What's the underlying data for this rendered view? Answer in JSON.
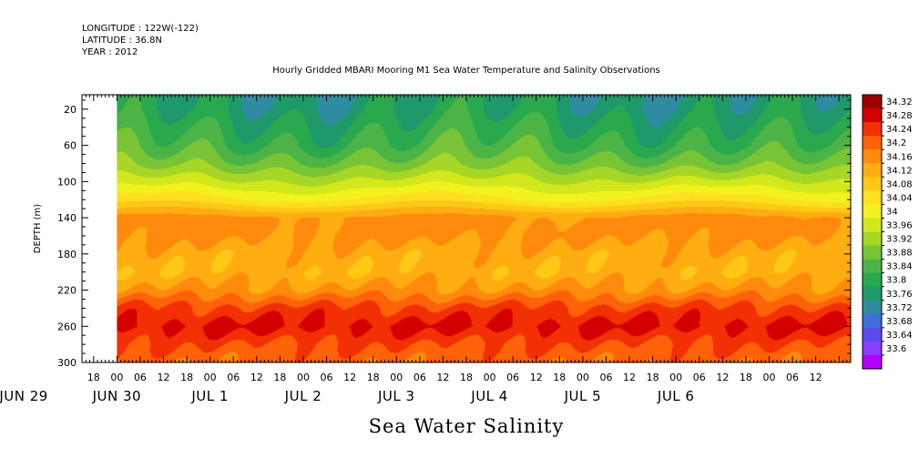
{
  "header": {
    "longitude": "LONGITUDE : 122W(-122)",
    "latitude": "LATITUDE : 36.8N",
    "year": "YEAR : 2012"
  },
  "chart_data": {
    "type": "heatmap",
    "title": "Hourly Gridded MBARI Mooring M1 Sea Water Temperature and Salinity Observations",
    "xlabel": "Sea Water Salinity",
    "ylabel": "DEPTH (m)",
    "y_axis": {
      "reversed": true,
      "ylim": [
        300,
        4
      ],
      "ticks": [
        20,
        60,
        100,
        140,
        180,
        220,
        260,
        300
      ]
    },
    "x_axis": {
      "start": "2012-06-28T15:00",
      "end": "2012-07-06T21:00",
      "data_start": "2012-06-29T00:00",
      "hour_ticks": [
        "18",
        "00",
        "06",
        "12",
        "18",
        "00",
        "06",
        "12",
        "18",
        "00",
        "06",
        "12",
        "18",
        "00",
        "06",
        "12",
        "18",
        "00",
        "06",
        "12",
        "18",
        "00",
        "06",
        "12",
        "18",
        "00",
        "06",
        "12",
        "18",
        "00",
        "06",
        "12"
      ],
      "date_labels": [
        "JUN 29",
        "JUN 30",
        "JUL  1",
        "JUL  2",
        "JUL  3",
        "JUL  4",
        "JUL  5",
        "JUL  6"
      ]
    },
    "colorbar": {
      "levels": [
        33.6,
        33.64,
        33.68,
        33.72,
        33.76,
        33.8,
        33.84,
        33.88,
        33.92,
        33.96,
        34,
        34.04,
        34.08,
        34.12,
        34.16,
        34.2,
        34.24,
        34.28,
        34.32
      ],
      "labels": [
        "34.32",
        "34.28",
        "34.24",
        "34.2",
        "34.16",
        "34.12",
        "34.08",
        "34.04",
        "34",
        "33.96",
        "33.92",
        "33.88",
        "33.84",
        "33.8",
        "33.76",
        "33.72",
        "33.68",
        "33.64",
        "33.6"
      ],
      "colors": [
        "#b400ff",
        "#8a3cff",
        "#5a4cf0",
        "#3f6fd8",
        "#2f8ca0",
        "#1e9a6a",
        "#2aa84e",
        "#4cb446",
        "#78c434",
        "#a8d626",
        "#d2e81c",
        "#f2f21e",
        "#ffe020",
        "#ffc814",
        "#ffad10",
        "#ff8a0c",
        "#ff6208",
        "#f23004",
        "#d40000",
        "#a00000"
      ]
    },
    "salinity_profile": {
      "depth": [
        4,
        20,
        40,
        60,
        80,
        100,
        120,
        140,
        160,
        180,
        200,
        220,
        240,
        260,
        280,
        300
      ],
      "salinity": [
        33.78,
        33.79,
        33.82,
        33.85,
        33.9,
        33.97,
        34.05,
        34.17,
        34.17,
        34.14,
        34.13,
        34.17,
        34.25,
        34.29,
        34.24,
        34.21
      ]
    },
    "series": []
  }
}
